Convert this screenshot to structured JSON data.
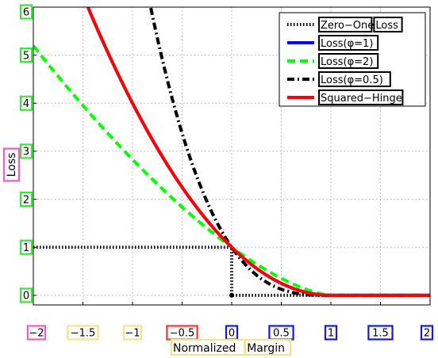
{
  "chart_data": {
    "type": "line",
    "title": "",
    "xlabel_words": [
      "Normalized",
      "Margin"
    ],
    "ylabel": "Loss",
    "xlim": [
      -2,
      2
    ],
    "ylim": [
      -0.2,
      6
    ],
    "grid": true,
    "legend_position": "top-right",
    "x_ticks": [
      {
        "value": -2,
        "label": "−2",
        "box": "#f25ac8"
      },
      {
        "value": -1.5,
        "label": "−1.5",
        "box": "#f1e58a"
      },
      {
        "value": -1,
        "label": "−1",
        "box": "#f1e58a"
      },
      {
        "value": -0.5,
        "label": "−0.5",
        "box": "#ff3333"
      },
      {
        "value": 0,
        "label": "0",
        "box": "#1a1acc"
      },
      {
        "value": 0.5,
        "label": "0.5",
        "box": "#1a1acc"
      },
      {
        "value": 1,
        "label": "1",
        "box": "#1a1acc"
      },
      {
        "value": 1.5,
        "label": "1.5",
        "box": "#1a1acc"
      },
      {
        "value": 2,
        "label": "2",
        "box": "#1a1acc"
      }
    ],
    "y_ticks": [
      {
        "value": 0,
        "label": "0",
        "box": "#39e639"
      },
      {
        "value": 1,
        "label": "1",
        "box": "#39e639"
      },
      {
        "value": 2,
        "label": "2",
        "box": "#39e639"
      },
      {
        "value": 3,
        "label": "3",
        "box": "#39e639"
      },
      {
        "value": 4,
        "label": "4",
        "box": "#39e639"
      },
      {
        "value": 5,
        "label": "5",
        "box": "#39e639"
      },
      {
        "value": 6,
        "label": "6",
        "box": "#39e639"
      }
    ],
    "xlabel_box_color": "#f1e58a",
    "ylabel_box_color": "#f25ac8",
    "series": [
      {
        "name": "Zero−One Loss",
        "color": "#000000",
        "style": "dotted-heavy",
        "legend_words": [
          "Zero−One",
          "Loss"
        ],
        "kind": "step"
      },
      {
        "name": "Loss(φ=1)",
        "color": "#0000ff",
        "style": "solid",
        "phi": 1,
        "kind": "phi"
      },
      {
        "name": "Loss(φ=2)",
        "color": "#00ff00",
        "style": "dashed",
        "phi": 2,
        "kind": "phi"
      },
      {
        "name": "Loss(φ=0.5)",
        "color": "#000000",
        "style": "dashdot",
        "phi": 0.5,
        "kind": "phi"
      },
      {
        "name": "Squared−Hinge",
        "color": "#ff0000",
        "style": "solid",
        "kind": "sqhinge"
      }
    ]
  }
}
